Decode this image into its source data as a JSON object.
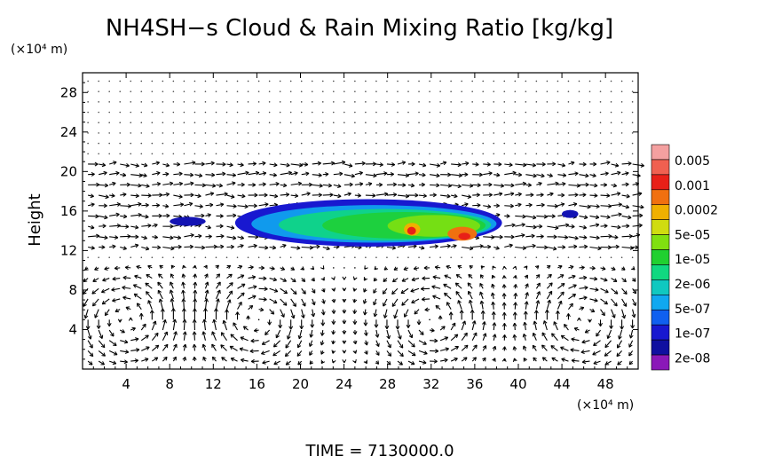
{
  "chart_data": {
    "type": "heatmap",
    "title": "NH4SH−s Cloud & Rain Mixing Ratio [kg/kg]",
    "ylabel": "Height",
    "y_unit_label": "(×10⁴ m)",
    "x_unit_label": "(×10⁴ m)",
    "xlim": [
      0,
      51
    ],
    "ylim": [
      0,
      30
    ],
    "x_ticks": [
      4,
      8,
      12,
      16,
      20,
      24,
      28,
      32,
      36,
      40,
      44,
      48
    ],
    "y_ticks": [
      4,
      8,
      12,
      16,
      20,
      24,
      28
    ],
    "time_label": "TIME = 7130000.0",
    "colorbar": {
      "labels": [
        "0.005",
        "0.001",
        "0.0002",
        "5e-05",
        "1e-05",
        "2e-06",
        "5e-07",
        "1e-07",
        "2e-08"
      ],
      "colors": [
        "#f4a0a0",
        "#f06050",
        "#e82018",
        "#f07010",
        "#f0b000",
        "#d0dc10",
        "#80e010",
        "#20d030",
        "#10d880",
        "#10c8c0",
        "#10a8f0",
        "#1060f0",
        "#1818d0",
        "#1010a0",
        "#8a18b8"
      ]
    },
    "cloud_regions": [
      {
        "x_range": [
          8.0,
          11.3
        ],
        "y_range": [
          14.5,
          15.4
        ],
        "max_level": "1e-07"
      },
      {
        "x_range": [
          14.0,
          38.5
        ],
        "y_range": [
          12.4,
          17.2
        ],
        "max_level": "0.0002"
      },
      {
        "x_range": [
          44.0,
          45.5
        ],
        "y_range": [
          15.3,
          16.1
        ],
        "max_level": "1e-07"
      }
    ],
    "wind_vectors": "sparse arrows above 12, strong circulation cells below 10 near x = 2–6, 14–18, 28–36 and 44–48"
  }
}
